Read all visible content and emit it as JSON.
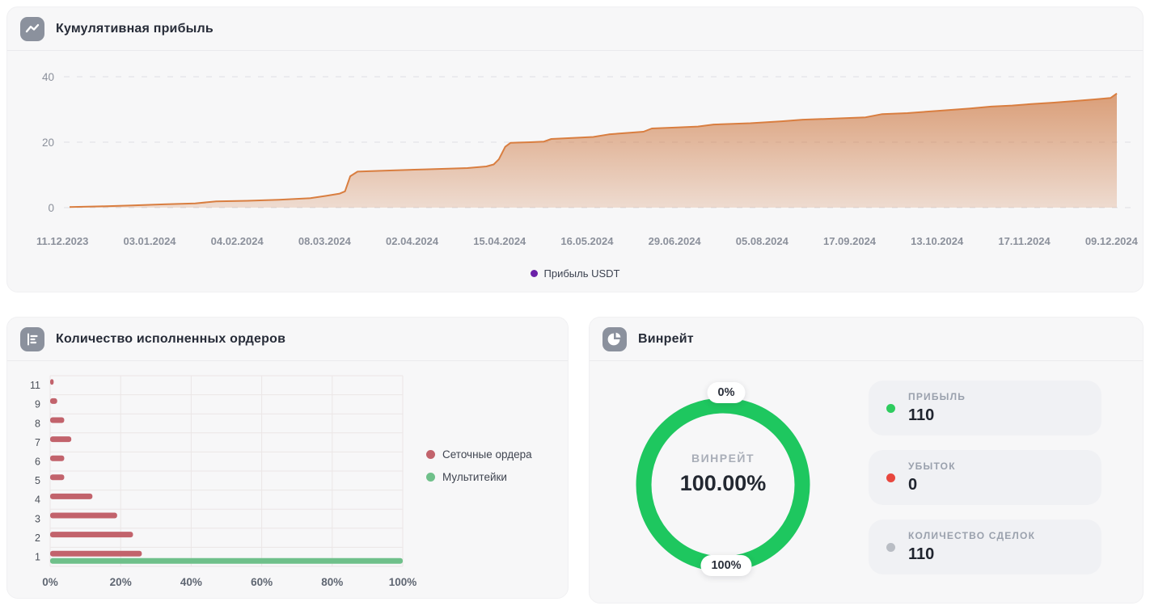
{
  "panels": {
    "cumulative": {
      "title": "Кумулятивная прибыль",
      "icon": "line-chart-icon"
    },
    "orders": {
      "title": "Количество исполненных ордеров",
      "icon": "bar-list-icon"
    },
    "winrate": {
      "title": "Винрейт",
      "icon": "pie-chart-icon"
    }
  },
  "chart_data": [
    {
      "id": "cumulative-profit",
      "type": "area",
      "title": "Кумулятивная прибыль",
      "ylabel": "Прибыль USDT",
      "y_ticks": [
        0,
        20,
        40
      ],
      "ylim": [
        0,
        44
      ],
      "grid": "dashed-horizontal",
      "x_tick_labels": [
        "11.12.2023",
        "03.01.2024",
        "04.02.2024",
        "08.03.2024",
        "02.04.2024",
        "15.04.2024",
        "16.05.2024",
        "29.06.2024",
        "05.08.2024",
        "17.09.2024",
        "13.10.2024",
        "17.11.2024",
        "09.12.2024"
      ],
      "legend": [
        {
          "label": "Прибыль USDT",
          "color": "#6b21a8"
        }
      ],
      "legend_position": "bottom-center",
      "line_color": "#d97e40",
      "fill_color_top": "rgba(198,98,34,0.62)",
      "fill_color_bottom": "rgba(198,98,34,0)",
      "points": [
        [
          0.0,
          0.2
        ],
        [
          0.03,
          0.4
        ],
        [
          0.06,
          0.7
        ],
        [
          0.09,
          1.0
        ],
        [
          0.12,
          1.3
        ],
        [
          0.14,
          1.9
        ],
        [
          0.17,
          2.1
        ],
        [
          0.2,
          2.4
        ],
        [
          0.23,
          2.9
        ],
        [
          0.245,
          3.6
        ],
        [
          0.258,
          4.3
        ],
        [
          0.263,
          5.0
        ],
        [
          0.268,
          9.6
        ],
        [
          0.275,
          11.0
        ],
        [
          0.3,
          11.3
        ],
        [
          0.34,
          11.7
        ],
        [
          0.38,
          12.1
        ],
        [
          0.398,
          12.6
        ],
        [
          0.405,
          13.2
        ],
        [
          0.41,
          14.8
        ],
        [
          0.416,
          18.6
        ],
        [
          0.421,
          19.8
        ],
        [
          0.44,
          20.0
        ],
        [
          0.453,
          20.2
        ],
        [
          0.46,
          21.0
        ],
        [
          0.48,
          21.3
        ],
        [
          0.5,
          21.6
        ],
        [
          0.515,
          22.4
        ],
        [
          0.53,
          22.8
        ],
        [
          0.548,
          23.2
        ],
        [
          0.556,
          24.2
        ],
        [
          0.58,
          24.5
        ],
        [
          0.6,
          24.8
        ],
        [
          0.615,
          25.4
        ],
        [
          0.65,
          25.8
        ],
        [
          0.68,
          26.4
        ],
        [
          0.7,
          26.9
        ],
        [
          0.73,
          27.2
        ],
        [
          0.76,
          27.6
        ],
        [
          0.776,
          28.6
        ],
        [
          0.8,
          28.9
        ],
        [
          0.83,
          29.6
        ],
        [
          0.86,
          30.3
        ],
        [
          0.88,
          30.9
        ],
        [
          0.9,
          31.2
        ],
        [
          0.92,
          31.7
        ],
        [
          0.94,
          32.1
        ],
        [
          0.96,
          32.6
        ],
        [
          0.98,
          33.1
        ],
        [
          0.994,
          33.5
        ],
        [
          1.0,
          34.9
        ]
      ]
    },
    {
      "id": "executed-orders",
      "type": "bar-horizontal",
      "title": "Количество исполненных ордеров",
      "categories": [
        "11",
        "9",
        "8",
        "7",
        "6",
        "5",
        "4",
        "3",
        "2",
        "1"
      ],
      "series": [
        {
          "name": "Сеточные ордера",
          "color": "#c2636c",
          "values": [
            1,
            2,
            4,
            6,
            4,
            4,
            12,
            19,
            23.5,
            26
          ]
        },
        {
          "name": "Мультитейки",
          "color": "#6fc08a",
          "values": [
            0,
            0,
            0,
            0,
            0,
            0,
            0,
            0,
            0,
            100
          ]
        }
      ],
      "x_ticks": [
        "0%",
        "20%",
        "40%",
        "60%",
        "80%",
        "100%"
      ],
      "xlim": [
        0,
        100
      ],
      "grid": "full",
      "legend_position": "right"
    },
    {
      "id": "winrate-donut",
      "type": "pie",
      "value_pct": 100,
      "ring_color": "#1ec75f",
      "track_color": "#e9ebee",
      "center_label": "ВИНРЕЙТ",
      "center_value": "100.00%",
      "top_badge": "0%",
      "bottom_badge": "100%"
    }
  ],
  "stats": [
    {
      "label": "ПРИБЫЛЬ",
      "value": "110",
      "dot_color": "#2ecc5e"
    },
    {
      "label": "УБЫТОК",
      "value": "0",
      "dot_color": "#e8473e"
    },
    {
      "label": "КОЛИЧЕСТВО СДЕЛОК",
      "value": "110",
      "dot_color": "#b9bdc4"
    }
  ]
}
